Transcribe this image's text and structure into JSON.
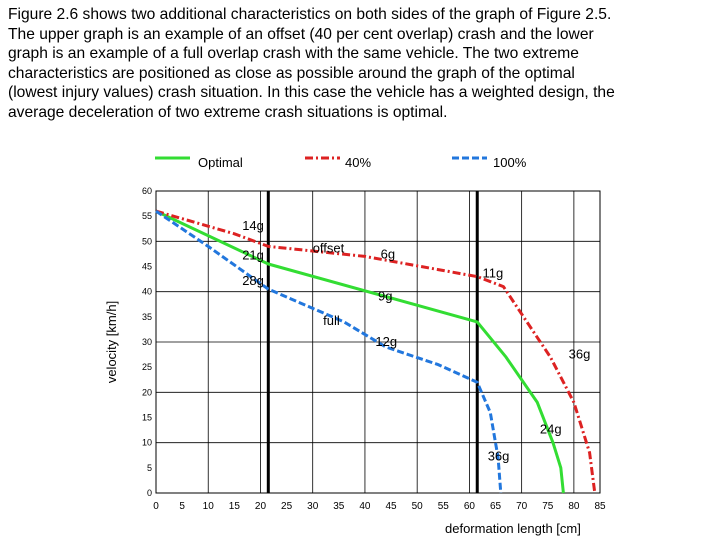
{
  "document": {
    "paragraph_lines": [
      "Figure 2.6 shows two additional characteristics on both sides of the graph of Figure 2.5.",
      "The upper graph is an example of an offset (40 per cent overlap) crash and the lower",
      "graph is an example of a full overlap crash with the same vehicle. The two extreme",
      "characteristics are positioned as close as possible around the graph of the optimal",
      "(lowest injury values) crash situation. In this case the vehicle has a weighted design, the",
      "average deceleration of two extreme crash situations is optimal."
    ]
  },
  "chart_data": {
    "type": "line",
    "xlabel": "deformation length [cm]",
    "ylabel": "velocity [km/h]",
    "xlim": [
      0,
      85
    ],
    "ylim": [
      0,
      60
    ],
    "x_ticks": [
      "0",
      "5",
      "10",
      "15",
      "20",
      "25",
      "30",
      "35",
      "40",
      "45",
      "50",
      "55",
      "60",
      "65",
      "70",
      "75",
      "80",
      "85"
    ],
    "y_ticks": [
      "0",
      "5",
      "10",
      "15",
      "20",
      "25",
      "30",
      "35",
      "40",
      "45",
      "50",
      "55",
      "60"
    ],
    "grid": true,
    "legend_position": "top",
    "vertical_markers": [
      21.5,
      61.5
    ],
    "series": [
      {
        "name": "Optimal",
        "color": "#33dd33",
        "dash": "solid",
        "points": [
          [
            0,
            56
          ],
          [
            21.5,
            45.5
          ],
          [
            61.5,
            34
          ],
          [
            67,
            27
          ],
          [
            73,
            18
          ],
          [
            76,
            10
          ],
          [
            77.5,
            5
          ],
          [
            78,
            0
          ]
        ]
      },
      {
        "name": "40%",
        "color": "#dd2222",
        "dash": "dashdot",
        "points": [
          [
            0,
            56
          ],
          [
            15,
            51.5
          ],
          [
            21.5,
            49
          ],
          [
            40,
            47
          ],
          [
            61.5,
            43
          ],
          [
            66.5,
            41
          ],
          [
            71,
            34
          ],
          [
            75.5,
            27
          ],
          [
            80,
            18
          ],
          [
            83,
            8
          ],
          [
            83.5,
            4
          ],
          [
            84,
            0
          ]
        ]
      },
      {
        "name": "100%",
        "color": "#2277dd",
        "dash": "dashed",
        "points": [
          [
            0,
            56
          ],
          [
            10,
            49
          ],
          [
            21.5,
            40.5
          ],
          [
            36,
            34
          ],
          [
            44,
            29
          ],
          [
            54,
            25.5
          ],
          [
            61.5,
            22
          ],
          [
            64,
            16
          ],
          [
            65.5,
            7
          ],
          [
            66,
            0
          ]
        ]
      }
    ],
    "annotations": [
      {
        "text": "14g",
        "x": 16.5,
        "y": 52.3
      },
      {
        "text": "21g",
        "x": 16.5,
        "y": 46.4
      },
      {
        "text": "28g",
        "x": 16.5,
        "y": 41.3
      },
      {
        "text": "offset",
        "x": 30,
        "y": 47.8
      },
      {
        "text": "6g",
        "x": 43,
        "y": 46.6
      },
      {
        "text": "11g",
        "x": 62.5,
        "y": 42.8
      },
      {
        "text": "9g",
        "x": 42.5,
        "y": 38.2
      },
      {
        "text": "full",
        "x": 32,
        "y": 33.4
      },
      {
        "text": "12g",
        "x": 42,
        "y": 29.2
      },
      {
        "text": "36g",
        "x": 79,
        "y": 26.7
      },
      {
        "text": "24g",
        "x": 73.5,
        "y": 11.8
      },
      {
        "text": "36g",
        "x": 63.5,
        "y": 6.5
      }
    ]
  }
}
